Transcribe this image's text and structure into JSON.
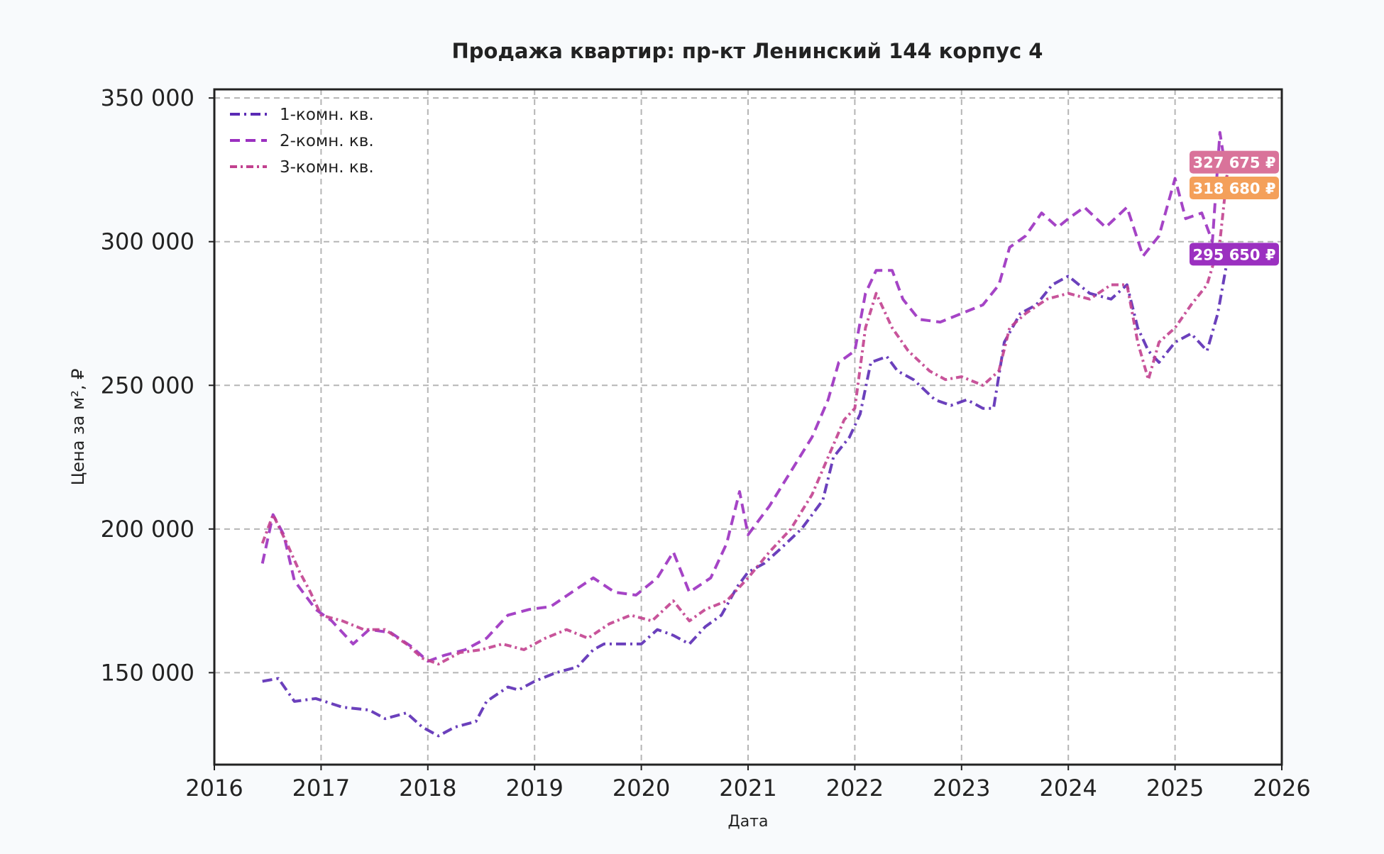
{
  "chart_data": {
    "type": "line",
    "title": "Продажа квартир: пр-кт Ленинский 144 корпус 4",
    "xlabel": "Дата",
    "ylabel": "Цена за м², ₽",
    "xlim": [
      2016,
      2026
    ],
    "ylim": [
      118000,
      353000
    ],
    "x_ticks": [
      2016,
      2017,
      2018,
      2019,
      2020,
      2021,
      2022,
      2023,
      2024,
      2025,
      2026
    ],
    "x_tick_labels": [
      "2016",
      "2017",
      "2018",
      "2019",
      "2020",
      "2021",
      "2022",
      "2023",
      "2024",
      "2025",
      "2026"
    ],
    "y_ticks": [
      150000,
      200000,
      250000,
      300000,
      350000
    ],
    "y_tick_labels": [
      "150 000",
      "200 000",
      "250 000",
      "300 000",
      "350 000"
    ],
    "grid": true,
    "legend_position": "top-left",
    "series": [
      {
        "name": "1-комн. кв.",
        "color": "#5b2bb5",
        "dash": "dash-dot",
        "points": [
          [
            2016.45,
            147000
          ],
          [
            2016.6,
            148000
          ],
          [
            2016.75,
            140000
          ],
          [
            2016.95,
            141000
          ],
          [
            2017.2,
            138000
          ],
          [
            2017.45,
            137000
          ],
          [
            2017.6,
            134000
          ],
          [
            2017.8,
            136000
          ],
          [
            2017.95,
            131000
          ],
          [
            2018.1,
            128000
          ],
          [
            2018.25,
            131000
          ],
          [
            2018.45,
            133000
          ],
          [
            2018.55,
            140000
          ],
          [
            2018.75,
            145000
          ],
          [
            2018.85,
            144000
          ],
          [
            2019.0,
            147000
          ],
          [
            2019.2,
            150000
          ],
          [
            2019.4,
            152000
          ],
          [
            2019.55,
            158000
          ],
          [
            2019.65,
            160000
          ],
          [
            2019.8,
            160000
          ],
          [
            2020.0,
            160000
          ],
          [
            2020.15,
            165000
          ],
          [
            2020.3,
            163000
          ],
          [
            2020.45,
            160000
          ],
          [
            2020.6,
            166000
          ],
          [
            2020.75,
            170000
          ],
          [
            2020.9,
            180000
          ],
          [
            2021.0,
            185000
          ],
          [
            2021.15,
            188000
          ],
          [
            2021.3,
            193000
          ],
          [
            2021.5,
            200000
          ],
          [
            2021.7,
            210000
          ],
          [
            2021.8,
            225000
          ],
          [
            2021.95,
            232000
          ],
          [
            2022.05,
            240000
          ],
          [
            2022.15,
            258000
          ],
          [
            2022.3,
            260000
          ],
          [
            2022.4,
            255000
          ],
          [
            2022.55,
            252000
          ],
          [
            2022.75,
            245000
          ],
          [
            2022.9,
            243000
          ],
          [
            2023.05,
            245000
          ],
          [
            2023.2,
            242000
          ],
          [
            2023.3,
            242000
          ],
          [
            2023.4,
            265000
          ],
          [
            2023.55,
            275000
          ],
          [
            2023.7,
            278000
          ],
          [
            2023.85,
            285000
          ],
          [
            2024.0,
            288000
          ],
          [
            2024.2,
            282000
          ],
          [
            2024.4,
            280000
          ],
          [
            2024.55,
            285000
          ],
          [
            2024.65,
            270000
          ],
          [
            2024.75,
            262000
          ],
          [
            2024.85,
            258000
          ],
          [
            2025.0,
            265000
          ],
          [
            2025.15,
            268000
          ],
          [
            2025.3,
            262000
          ],
          [
            2025.4,
            275000
          ],
          [
            2025.5,
            295650
          ]
        ]
      },
      {
        "name": "2-комн. кв.",
        "color": "#9b30c0",
        "dash": "dashed",
        "points": [
          [
            2016.45,
            188000
          ],
          [
            2016.55,
            205000
          ],
          [
            2016.65,
            198000
          ],
          [
            2016.75,
            182000
          ],
          [
            2016.95,
            172000
          ],
          [
            2017.1,
            168000
          ],
          [
            2017.3,
            160000
          ],
          [
            2017.45,
            165000
          ],
          [
            2017.65,
            164000
          ],
          [
            2017.85,
            159000
          ],
          [
            2018.0,
            154000
          ],
          [
            2018.15,
            156000
          ],
          [
            2018.35,
            158000
          ],
          [
            2018.55,
            162000
          ],
          [
            2018.75,
            170000
          ],
          [
            2018.95,
            172000
          ],
          [
            2019.15,
            173000
          ],
          [
            2019.35,
            178000
          ],
          [
            2019.55,
            183000
          ],
          [
            2019.75,
            178000
          ],
          [
            2019.95,
            177000
          ],
          [
            2020.15,
            183000
          ],
          [
            2020.3,
            192000
          ],
          [
            2020.45,
            178000
          ],
          [
            2020.65,
            183000
          ],
          [
            2020.8,
            195000
          ],
          [
            2020.92,
            213000
          ],
          [
            2021.0,
            198000
          ],
          [
            2021.2,
            208000
          ],
          [
            2021.4,
            220000
          ],
          [
            2021.6,
            232000
          ],
          [
            2021.75,
            245000
          ],
          [
            2021.85,
            258000
          ],
          [
            2022.0,
            262000
          ],
          [
            2022.1,
            282000
          ],
          [
            2022.2,
            290000
          ],
          [
            2022.35,
            290000
          ],
          [
            2022.45,
            280000
          ],
          [
            2022.6,
            273000
          ],
          [
            2022.8,
            272000
          ],
          [
            2023.0,
            275000
          ],
          [
            2023.2,
            278000
          ],
          [
            2023.35,
            285000
          ],
          [
            2023.45,
            298000
          ],
          [
            2023.6,
            302000
          ],
          [
            2023.75,
            310000
          ],
          [
            2023.9,
            305000
          ],
          [
            2024.0,
            308000
          ],
          [
            2024.15,
            312000
          ],
          [
            2024.35,
            305000
          ],
          [
            2024.55,
            312000
          ],
          [
            2024.7,
            295000
          ],
          [
            2024.85,
            302000
          ],
          [
            2025.0,
            322000
          ],
          [
            2025.1,
            308000
          ],
          [
            2025.25,
            310000
          ],
          [
            2025.35,
            300000
          ],
          [
            2025.42,
            338000
          ],
          [
            2025.5,
            318680
          ]
        ]
      },
      {
        "name": "3-комн. кв.",
        "color": "#c2418f",
        "dash": "dash-dot-marker",
        "points": [
          [
            2016.45,
            195000
          ],
          [
            2016.55,
            205000
          ],
          [
            2016.68,
            195000
          ],
          [
            2016.8,
            185000
          ],
          [
            2016.9,
            178000
          ],
          [
            2017.0,
            170000
          ],
          [
            2017.2,
            168000
          ],
          [
            2017.4,
            165000
          ],
          [
            2017.6,
            165000
          ],
          [
            2017.8,
            160000
          ],
          [
            2017.95,
            155000
          ],
          [
            2018.1,
            153000
          ],
          [
            2018.3,
            157000
          ],
          [
            2018.5,
            158000
          ],
          [
            2018.7,
            160000
          ],
          [
            2018.9,
            158000
          ],
          [
            2019.1,
            162000
          ],
          [
            2019.3,
            165000
          ],
          [
            2019.5,
            162000
          ],
          [
            2019.7,
            167000
          ],
          [
            2019.9,
            170000
          ],
          [
            2020.1,
            168000
          ],
          [
            2020.3,
            175000
          ],
          [
            2020.45,
            168000
          ],
          [
            2020.6,
            172000
          ],
          [
            2020.8,
            175000
          ],
          [
            2021.0,
            183000
          ],
          [
            2021.2,
            192000
          ],
          [
            2021.4,
            200000
          ],
          [
            2021.6,
            212000
          ],
          [
            2021.75,
            225000
          ],
          [
            2021.9,
            238000
          ],
          [
            2022.0,
            242000
          ],
          [
            2022.1,
            270000
          ],
          [
            2022.2,
            282000
          ],
          [
            2022.35,
            270000
          ],
          [
            2022.5,
            262000
          ],
          [
            2022.7,
            255000
          ],
          [
            2022.85,
            252000
          ],
          [
            2023.0,
            253000
          ],
          [
            2023.2,
            250000
          ],
          [
            2023.35,
            255000
          ],
          [
            2023.45,
            270000
          ],
          [
            2023.6,
            275000
          ],
          [
            2023.8,
            280000
          ],
          [
            2024.0,
            282000
          ],
          [
            2024.2,
            280000
          ],
          [
            2024.4,
            285000
          ],
          [
            2024.55,
            285000
          ],
          [
            2024.65,
            265000
          ],
          [
            2024.75,
            252000
          ],
          [
            2024.85,
            265000
          ],
          [
            2025.0,
            270000
          ],
          [
            2025.15,
            278000
          ],
          [
            2025.3,
            285000
          ],
          [
            2025.42,
            300000
          ],
          [
            2025.5,
            327675
          ]
        ]
      }
    ],
    "annotations": [
      {
        "text": "327 675 ₽",
        "y": 327675,
        "color": "#d9739a"
      },
      {
        "text": "318 680 ₽",
        "y": 318680,
        "color": "#f4a05a"
      },
      {
        "text": "295 650 ₽",
        "y": 295650,
        "color": "#9b30c0"
      }
    ]
  }
}
